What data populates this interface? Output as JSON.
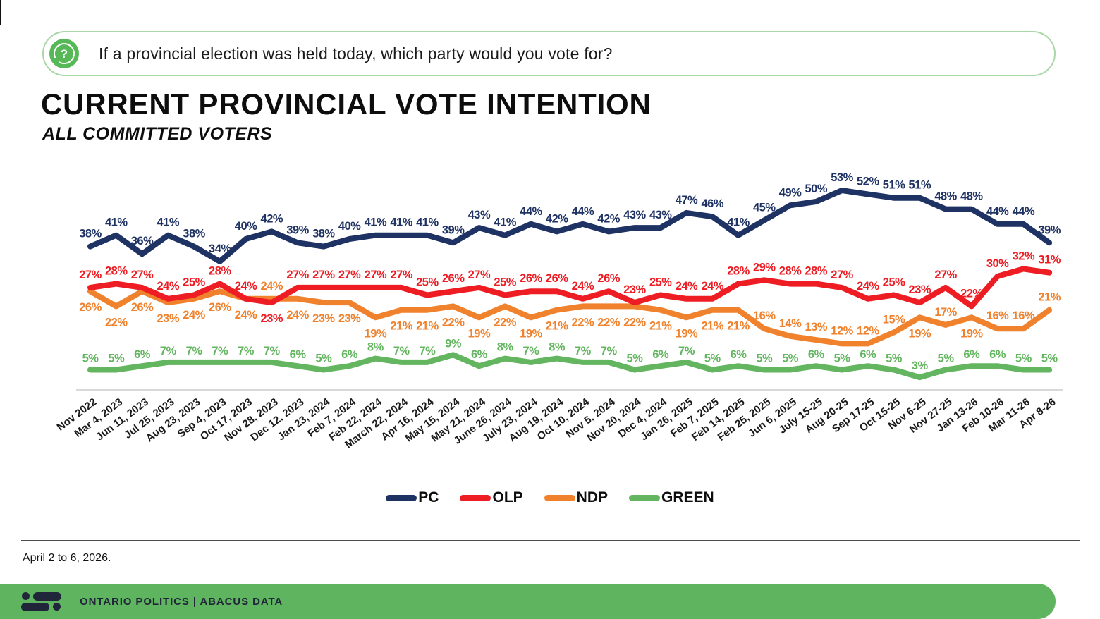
{
  "question": {
    "icon": "question-bubble-icon",
    "icon_color": "#57b857",
    "glyph": "?",
    "text": "If a provincial election was held today, which party would you vote for?"
  },
  "title": "CURRENT PROVINCIAL VOTE INTENTION",
  "subtitle": "ALL COMMITTED VOTERS",
  "chart_data": {
    "type": "line",
    "x": [
      "Nov 2022",
      "Mar 4, 2023",
      "Jun 11, 2023",
      "Jul 25, 2023",
      "Aug 23, 2023",
      "Sep 4, 2023",
      "Oct 17, 2023",
      "Nov 28, 2023",
      "Dec 12, 2023",
      "Jan 23, 2024",
      "Feb 7, 2024",
      "Feb 22, 2024",
      "March 22, 2024",
      "Apr 16, 2024",
      "May 15, 2024",
      "May 21, 2024",
      "June 26, 2024",
      "July 23, 2024",
      "Aug 19, 2024",
      "Oct 10, 2024",
      "Nov 5, 2024",
      "Nov 20, 2024",
      "Dec 4, 2024",
      "Jan 26, 2025",
      "Feb 7, 2025",
      "Feb 14, 2025",
      "Feb 25, 2025",
      "Jun 6, 2025",
      "July 15-25",
      "Aug 20-25",
      "Sep 17-25",
      "Oct 15-25",
      "Nov 6-25",
      "Nov 27-25",
      "Jan 13-26",
      "Feb 10-26",
      "Mar 11-26",
      "Apr 8-26"
    ],
    "series": [
      {
        "name": "PC",
        "color": "#1e3263",
        "values": [
          38,
          41,
          36,
          41,
          38,
          34,
          40,
          42,
          39,
          38,
          40,
          41,
          41,
          41,
          39,
          43,
          41,
          44,
          42,
          44,
          42,
          43,
          43,
          47,
          46,
          41,
          45,
          49,
          50,
          53,
          52,
          51,
          51,
          48,
          48,
          44,
          44,
          39
        ]
      },
      {
        "name": "OLP",
        "color": "#ee1d23",
        "values": [
          27,
          28,
          27,
          24,
          25,
          28,
          24,
          23,
          27,
          27,
          27,
          27,
          27,
          25,
          26,
          27,
          25,
          26,
          26,
          24,
          26,
          23,
          25,
          24,
          24,
          28,
          29,
          28,
          28,
          27,
          24,
          25,
          23,
          27,
          22,
          30,
          32,
          31
        ]
      },
      {
        "name": "NDP",
        "color": "#f0822d",
        "values": [
          26,
          22,
          26,
          23,
          24,
          26,
          24,
          24,
          24,
          23,
          23,
          19,
          21,
          21,
          22,
          19,
          22,
          19,
          21,
          22,
          22,
          22,
          21,
          19,
          21,
          21,
          16,
          14,
          13,
          12,
          12,
          15,
          19,
          17,
          19,
          16,
          16,
          21
        ]
      },
      {
        "name": "GREEN",
        "color": "#63b55f",
        "values": [
          5,
          5,
          6,
          7,
          7,
          7,
          7,
          7,
          6,
          5,
          6,
          8,
          7,
          7,
          9,
          6,
          8,
          7,
          8,
          7,
          7,
          5,
          6,
          7,
          5,
          6,
          5,
          5,
          6,
          5,
          6,
          5,
          3,
          5,
          6,
          6,
          5,
          5
        ]
      }
    ],
    "value_labels": "percent",
    "ylim": [
      0,
      60
    ],
    "grid": false,
    "axis_line_color": "#d9d9d9",
    "legend_position": "bottom"
  },
  "footnote": "April 2 to 6, 2026.",
  "footer": {
    "logo": "abacus-data-logo",
    "brand": "ONTARIO POLITICS | ABACUS DATA",
    "bar_color": "#5fb45f"
  }
}
